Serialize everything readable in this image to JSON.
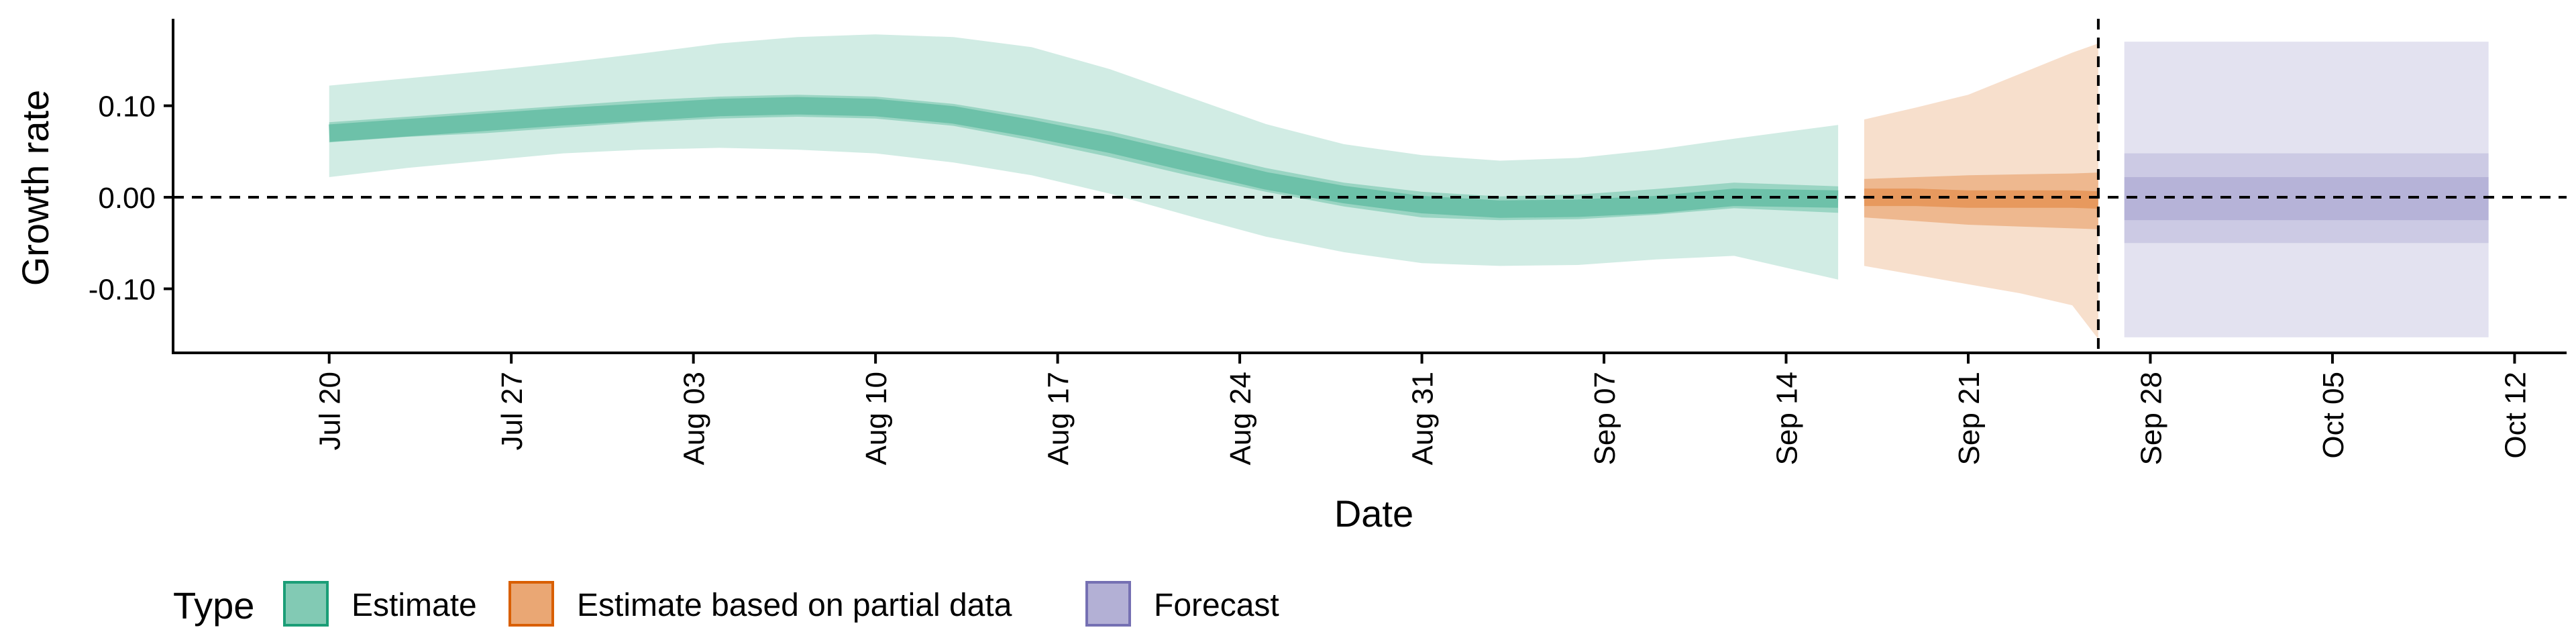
{
  "chart_data": {
    "type": "area",
    "xlabel": "Date",
    "ylabel": "Growth rate",
    "xlim": [
      "2020-07-14",
      "2020-10-14"
    ],
    "ylim": [
      -0.17,
      0.195
    ],
    "x_ticks": [
      "Jul 20",
      "Jul 27",
      "Aug 03",
      "Aug 10",
      "Aug 17",
      "Aug 24",
      "Aug 31",
      "Sep 07",
      "Sep 14",
      "Sep 21",
      "Sep 28",
      "Oct 05",
      "Oct 12"
    ],
    "y_ticks": [
      "0.10",
      "0.00",
      "-0.10"
    ],
    "y_tick_values": [
      0.1,
      0.0,
      -0.1
    ],
    "reference_lines": {
      "horizontal_y": 0.0,
      "vertical_date": "2020-09-26"
    },
    "grid": false,
    "legend": {
      "title": "Type",
      "placement": "bottom",
      "entries": [
        "Estimate",
        "Estimate based on partial data",
        "Forecast"
      ]
    },
    "colors": {
      "Estimate": "#1b9e77",
      "Estimate based on partial data": "#d95f02",
      "Forecast": "#7570b3"
    },
    "series": [
      {
        "name": "Estimate",
        "x": [
          "2020-07-20",
          "2020-07-23",
          "2020-07-26",
          "2020-07-29",
          "2020-08-01",
          "2020-08-04",
          "2020-08-07",
          "2020-08-10",
          "2020-08-13",
          "2020-08-16",
          "2020-08-19",
          "2020-08-22",
          "2020-08-25",
          "2020-08-28",
          "2020-08-31",
          "2020-09-03",
          "2020-09-06",
          "2020-09-09",
          "2020-09-12",
          "2020-09-16"
        ],
        "median": [
          0.07,
          0.076,
          0.082,
          0.088,
          0.093,
          0.098,
          0.1,
          0.098,
          0.09,
          0.075,
          0.058,
          0.038,
          0.018,
          0.003,
          -0.008,
          -0.013,
          -0.012,
          -0.008,
          0.0,
          -0.002
        ],
        "lower_50": [
          0.06,
          0.066,
          0.07,
          0.076,
          0.082,
          0.086,
          0.088,
          0.086,
          0.078,
          0.062,
          0.044,
          0.024,
          0.006,
          -0.01,
          -0.022,
          -0.025,
          -0.024,
          -0.019,
          -0.012,
          -0.017
        ],
        "upper_50": [
          0.082,
          0.088,
          0.094,
          0.1,
          0.106,
          0.11,
          0.112,
          0.11,
          0.102,
          0.088,
          0.072,
          0.052,
          0.032,
          0.016,
          0.006,
          0.001,
          0.003,
          0.009,
          0.016,
          0.012
        ],
        "lower_90": [
          0.022,
          0.032,
          0.04,
          0.048,
          0.052,
          0.054,
          0.052,
          0.048,
          0.038,
          0.024,
          0.004,
          -0.02,
          -0.043,
          -0.06,
          -0.072,
          -0.075,
          -0.074,
          -0.068,
          -0.064,
          -0.09
        ],
        "upper_90": [
          0.122,
          0.13,
          0.138,
          0.147,
          0.157,
          0.168,
          0.175,
          0.178,
          0.175,
          0.164,
          0.14,
          0.11,
          0.08,
          0.058,
          0.046,
          0.04,
          0.043,
          0.052,
          0.064,
          0.079
        ]
      },
      {
        "name": "Estimate based on partial data",
        "x": [
          "2020-09-17",
          "2020-09-19",
          "2020-09-21",
          "2020-09-23",
          "2020-09-25",
          "2020-09-26"
        ],
        "median": [
          0.0,
          0.0,
          -0.002,
          -0.002,
          -0.002,
          -0.003
        ],
        "lower_50": [
          -0.022,
          -0.026,
          -0.03,
          -0.032,
          -0.034,
          -0.035
        ],
        "upper_50": [
          0.02,
          0.022,
          0.024,
          0.025,
          0.026,
          0.027
        ],
        "lower_90": [
          -0.075,
          -0.085,
          -0.095,
          -0.105,
          -0.118,
          -0.155
        ],
        "upper_90": [
          0.085,
          0.098,
          0.112,
          0.135,
          0.158,
          0.168
        ]
      },
      {
        "name": "Forecast",
        "x": [
          "2020-09-27",
          "2020-10-11"
        ],
        "median": [
          -0.002,
          -0.002
        ],
        "lower_50": [
          -0.025,
          -0.025
        ],
        "upper_50": [
          0.022,
          0.022
        ],
        "lower_30": [
          -0.05,
          -0.05
        ],
        "upper_30": [
          0.048,
          0.048
        ],
        "lower_90": [
          -0.153,
          -0.153
        ],
        "upper_90": [
          0.17,
          0.17
        ]
      }
    ]
  }
}
